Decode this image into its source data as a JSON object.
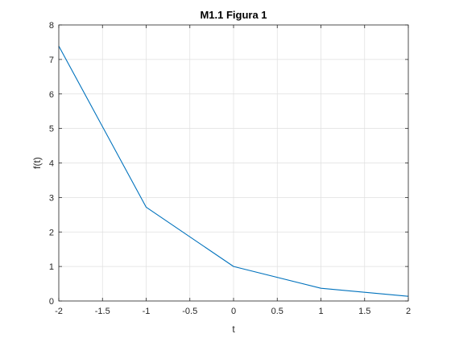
{
  "chart_data": {
    "type": "line",
    "title": "M1.1 Figura 1",
    "xlabel": "t",
    "ylabel": "f(t)",
    "xlim": [
      -2,
      2
    ],
    "ylim": [
      0,
      8
    ],
    "x_ticks": [
      -2,
      -1.5,
      -1,
      -0.5,
      0,
      0.5,
      1,
      1.5,
      2
    ],
    "x_tick_labels": [
      "-2",
      "-1.5",
      "-1",
      "-0.5",
      "0",
      "0.5",
      "1",
      "1.5",
      "2"
    ],
    "y_ticks": [
      0,
      1,
      2,
      3,
      4,
      5,
      6,
      7,
      8
    ],
    "y_tick_labels": [
      "0",
      "1",
      "2",
      "3",
      "4",
      "5",
      "6",
      "7",
      "8"
    ],
    "grid": true,
    "series": [
      {
        "x": [
          -2,
          -1,
          0,
          1,
          2
        ],
        "y": [
          7.389,
          2.718,
          1.0,
          0.368,
          0.135
        ],
        "color": "#0072BD"
      }
    ]
  }
}
